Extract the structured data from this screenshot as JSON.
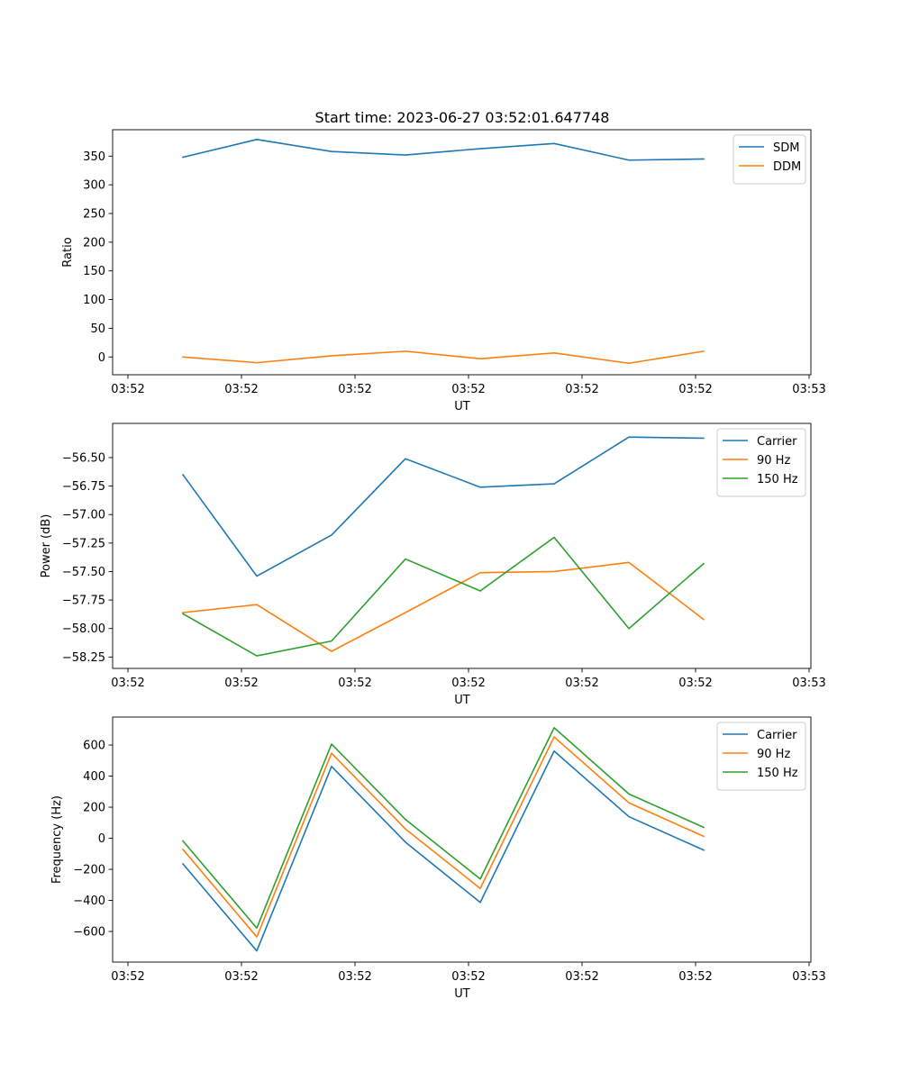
{
  "figure_title": "Start time: 2023-06-27 03:52:01.647748",
  "colors": {
    "blue": "#1f77b4",
    "orange": "#ff7f0e",
    "green": "#2ca02c"
  },
  "chart_data": [
    {
      "type": "line",
      "xlabel": "UT",
      "ylabel": "Ratio",
      "x_tick_labels": [
        "03:52",
        "03:52",
        "03:52",
        "03:52",
        "03:52",
        "03:52",
        "03:53"
      ],
      "y_ticks": [
        0,
        50,
        100,
        150,
        200,
        250,
        300,
        350
      ],
      "y_tick_labels": [
        "0",
        "50",
        "100",
        "150",
        "200",
        "250",
        "300",
        "350"
      ],
      "ylim": [
        -31,
        396
      ],
      "grid": false,
      "legend_position": "top-right",
      "series": [
        {
          "name": "SDM",
          "color": "#1f77b4",
          "values": [
            348,
            379,
            358,
            352,
            363,
            372,
            343,
            345
          ]
        },
        {
          "name": "DDM",
          "color": "#ff7f0e",
          "values": [
            0,
            -10,
            2,
            10,
            -3,
            7,
            -11,
            10
          ]
        }
      ]
    },
    {
      "type": "line",
      "xlabel": "UT",
      "ylabel": "Power (dB)",
      "x_tick_labels": [
        "03:52",
        "03:52",
        "03:52",
        "03:52",
        "03:52",
        "03:52",
        "03:53"
      ],
      "y_ticks": [
        -58.25,
        -58.0,
        -57.75,
        -57.5,
        -57.25,
        -57.0,
        -56.75,
        -56.5
      ],
      "y_tick_labels": [
        "−58.25",
        "−58.00",
        "−57.75",
        "−57.50",
        "−57.25",
        "−57.00",
        "−56.75",
        "−56.50"
      ],
      "ylim": [
        -58.35,
        -56.2
      ],
      "grid": false,
      "legend_position": "top-right",
      "series": [
        {
          "name": "Carrier",
          "color": "#1f77b4",
          "values": [
            -56.65,
            -57.54,
            -57.18,
            -56.51,
            -56.76,
            -56.73,
            -56.32,
            -56.33
          ]
        },
        {
          "name": "90 Hz",
          "color": "#ff7f0e",
          "values": [
            -57.86,
            -57.79,
            -58.2,
            -57.86,
            -57.51,
            -57.5,
            -57.42,
            -57.92
          ]
        },
        {
          "name": "150 Hz",
          "color": "#2ca02c",
          "values": [
            -57.87,
            -58.24,
            -58.11,
            -57.39,
            -57.67,
            -57.2,
            -58.0,
            -57.43
          ]
        }
      ]
    },
    {
      "type": "line",
      "xlabel": "UT",
      "ylabel": "Frequency (Hz)",
      "x_tick_labels": [
        "03:52",
        "03:52",
        "03:52",
        "03:52",
        "03:52",
        "03:52",
        "03:53"
      ],
      "y_ticks": [
        -600,
        -400,
        -200,
        0,
        200,
        400,
        600
      ],
      "y_tick_labels": [
        "−600",
        "−400",
        "−200",
        "0",
        "200",
        "400",
        "600"
      ],
      "ylim": [
        -797,
        780
      ],
      "grid": false,
      "legend_position": "top-right",
      "series": [
        {
          "name": "Carrier",
          "color": "#1f77b4",
          "values": [
            -165,
            -725,
            462,
            -25,
            -413,
            561,
            139,
            -76
          ]
        },
        {
          "name": "90 Hz",
          "color": "#ff7f0e",
          "values": [
            -72,
            -635,
            547,
            60,
            -323,
            652,
            228,
            12
          ]
        },
        {
          "name": "150 Hz",
          "color": "#2ca02c",
          "values": [
            -17,
            -578,
            606,
            121,
            -262,
            711,
            285,
            70
          ]
        }
      ]
    }
  ]
}
